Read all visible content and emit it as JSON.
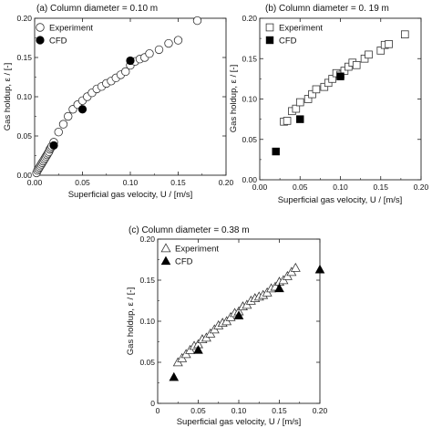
{
  "chart_data": [
    {
      "type": "scatter",
      "title": "(a) Column diameter = 0.10 m",
      "xlabel": "Superficial gas velocity, U / [m/s]",
      "ylabel": "Gas holdup, ε / [-]",
      "xlim": [
        0,
        0.2
      ],
      "ylim": [
        0,
        0.2
      ],
      "xticks": [
        "0.00",
        "0.05",
        "0.10",
        "0.15",
        "0.20"
      ],
      "yticks": [
        "0.00",
        "0.05",
        "0.10",
        "0.15",
        "0.20"
      ],
      "legend_position": "top-left",
      "series": [
        {
          "name": "Experiment",
          "marker": "open-circle",
          "color": "#222222",
          "x": [
            0.002,
            0.003,
            0.004,
            0.005,
            0.006,
            0.007,
            0.008,
            0.009,
            0.01,
            0.011,
            0.012,
            0.013,
            0.014,
            0.015,
            0.016,
            0.017,
            0.018,
            0.02,
            0.025,
            0.03,
            0.035,
            0.04,
            0.045,
            0.05,
            0.055,
            0.06,
            0.065,
            0.07,
            0.075,
            0.08,
            0.085,
            0.09,
            0.095,
            0.1,
            0.105,
            0.11,
            0.115,
            0.12,
            0.13,
            0.14,
            0.15,
            0.17
          ],
          "y": [
            0.003,
            0.006,
            0.008,
            0.01,
            0.012,
            0.014,
            0.016,
            0.018,
            0.02,
            0.022,
            0.024,
            0.026,
            0.028,
            0.03,
            0.033,
            0.035,
            0.037,
            0.042,
            0.055,
            0.065,
            0.075,
            0.084,
            0.09,
            0.095,
            0.1,
            0.105,
            0.11,
            0.113,
            0.117,
            0.12,
            0.124,
            0.128,
            0.132,
            0.14,
            0.145,
            0.148,
            0.15,
            0.155,
            0.16,
            0.168,
            0.172,
            0.197
          ]
        },
        {
          "name": "CFD",
          "marker": "filled-circle",
          "color": "#000000",
          "x": [
            0.02,
            0.05,
            0.1
          ],
          "y": [
            0.038,
            0.084,
            0.146
          ]
        }
      ]
    },
    {
      "type": "scatter",
      "title": "(b) Column diameter = 0. 19 m",
      "xlabel": "Superficial gas velocity, U / [m/s]",
      "ylabel": "Gas holdup, ε / [-]",
      "xlim": [
        0,
        0.2
      ],
      "ylim": [
        0,
        0.2
      ],
      "xticks": [
        "0.00",
        "0.05",
        "0.10",
        "0.15",
        "0.20"
      ],
      "yticks": [
        "0.00",
        "0.05",
        "0.10",
        "0.15",
        "0.20"
      ],
      "legend_position": "top-left",
      "series": [
        {
          "name": "Experiment",
          "marker": "open-square",
          "color": "#222222",
          "x": [
            0.03,
            0.034,
            0.04,
            0.045,
            0.05,
            0.06,
            0.065,
            0.07,
            0.08,
            0.085,
            0.09,
            0.095,
            0.1,
            0.105,
            0.11,
            0.115,
            0.12,
            0.13,
            0.135,
            0.15,
            0.155,
            0.16,
            0.18
          ],
          "y": [
            0.072,
            0.073,
            0.085,
            0.088,
            0.096,
            0.1,
            0.106,
            0.112,
            0.115,
            0.12,
            0.125,
            0.132,
            0.13,
            0.135,
            0.14,
            0.145,
            0.142,
            0.15,
            0.155,
            0.16,
            0.167,
            0.168,
            0.18
          ]
        },
        {
          "name": "CFD",
          "marker": "filled-square",
          "color": "#000000",
          "x": [
            0.02,
            0.05,
            0.1
          ],
          "y": [
            0.035,
            0.075,
            0.128
          ]
        }
      ]
    },
    {
      "type": "scatter",
      "title": "(c) Column diameter = 0.38 m",
      "xlabel": "Superficial gas velocity, U / [m/s]",
      "ylabel": "Gas holdup, ε / [-]",
      "xlim": [
        0,
        0.2
      ],
      "ylim": [
        0,
        0.2
      ],
      "xticks": [
        "0",
        "0.05",
        "0.10",
        "0.15",
        "0.20"
      ],
      "yticks": [
        "0",
        "0.05",
        "0.10",
        "0.15",
        "0.20"
      ],
      "legend_position": "top-left",
      "series": [
        {
          "name": "Experiment",
          "marker": "open-triangle",
          "color": "#222222",
          "x": [
            0.025,
            0.03,
            0.035,
            0.04,
            0.045,
            0.05,
            0.055,
            0.06,
            0.065,
            0.07,
            0.075,
            0.08,
            0.085,
            0.09,
            0.095,
            0.1,
            0.105,
            0.11,
            0.115,
            0.12,
            0.125,
            0.13,
            0.135,
            0.14,
            0.145,
            0.15,
            0.155,
            0.16,
            0.165,
            0.17
          ],
          "y": [
            0.05,
            0.055,
            0.06,
            0.065,
            0.07,
            0.072,
            0.078,
            0.08,
            0.085,
            0.09,
            0.095,
            0.098,
            0.1,
            0.105,
            0.11,
            0.112,
            0.118,
            0.12,
            0.125,
            0.128,
            0.13,
            0.132,
            0.135,
            0.14,
            0.142,
            0.148,
            0.15,
            0.155,
            0.16,
            0.165
          ]
        },
        {
          "name": "CFD",
          "marker": "filled-triangle",
          "color": "#000000",
          "x": [
            0.02,
            0.05,
            0.1,
            0.15,
            0.2
          ],
          "y": [
            0.032,
            0.065,
            0.107,
            0.14,
            0.163
          ]
        }
      ]
    }
  ]
}
